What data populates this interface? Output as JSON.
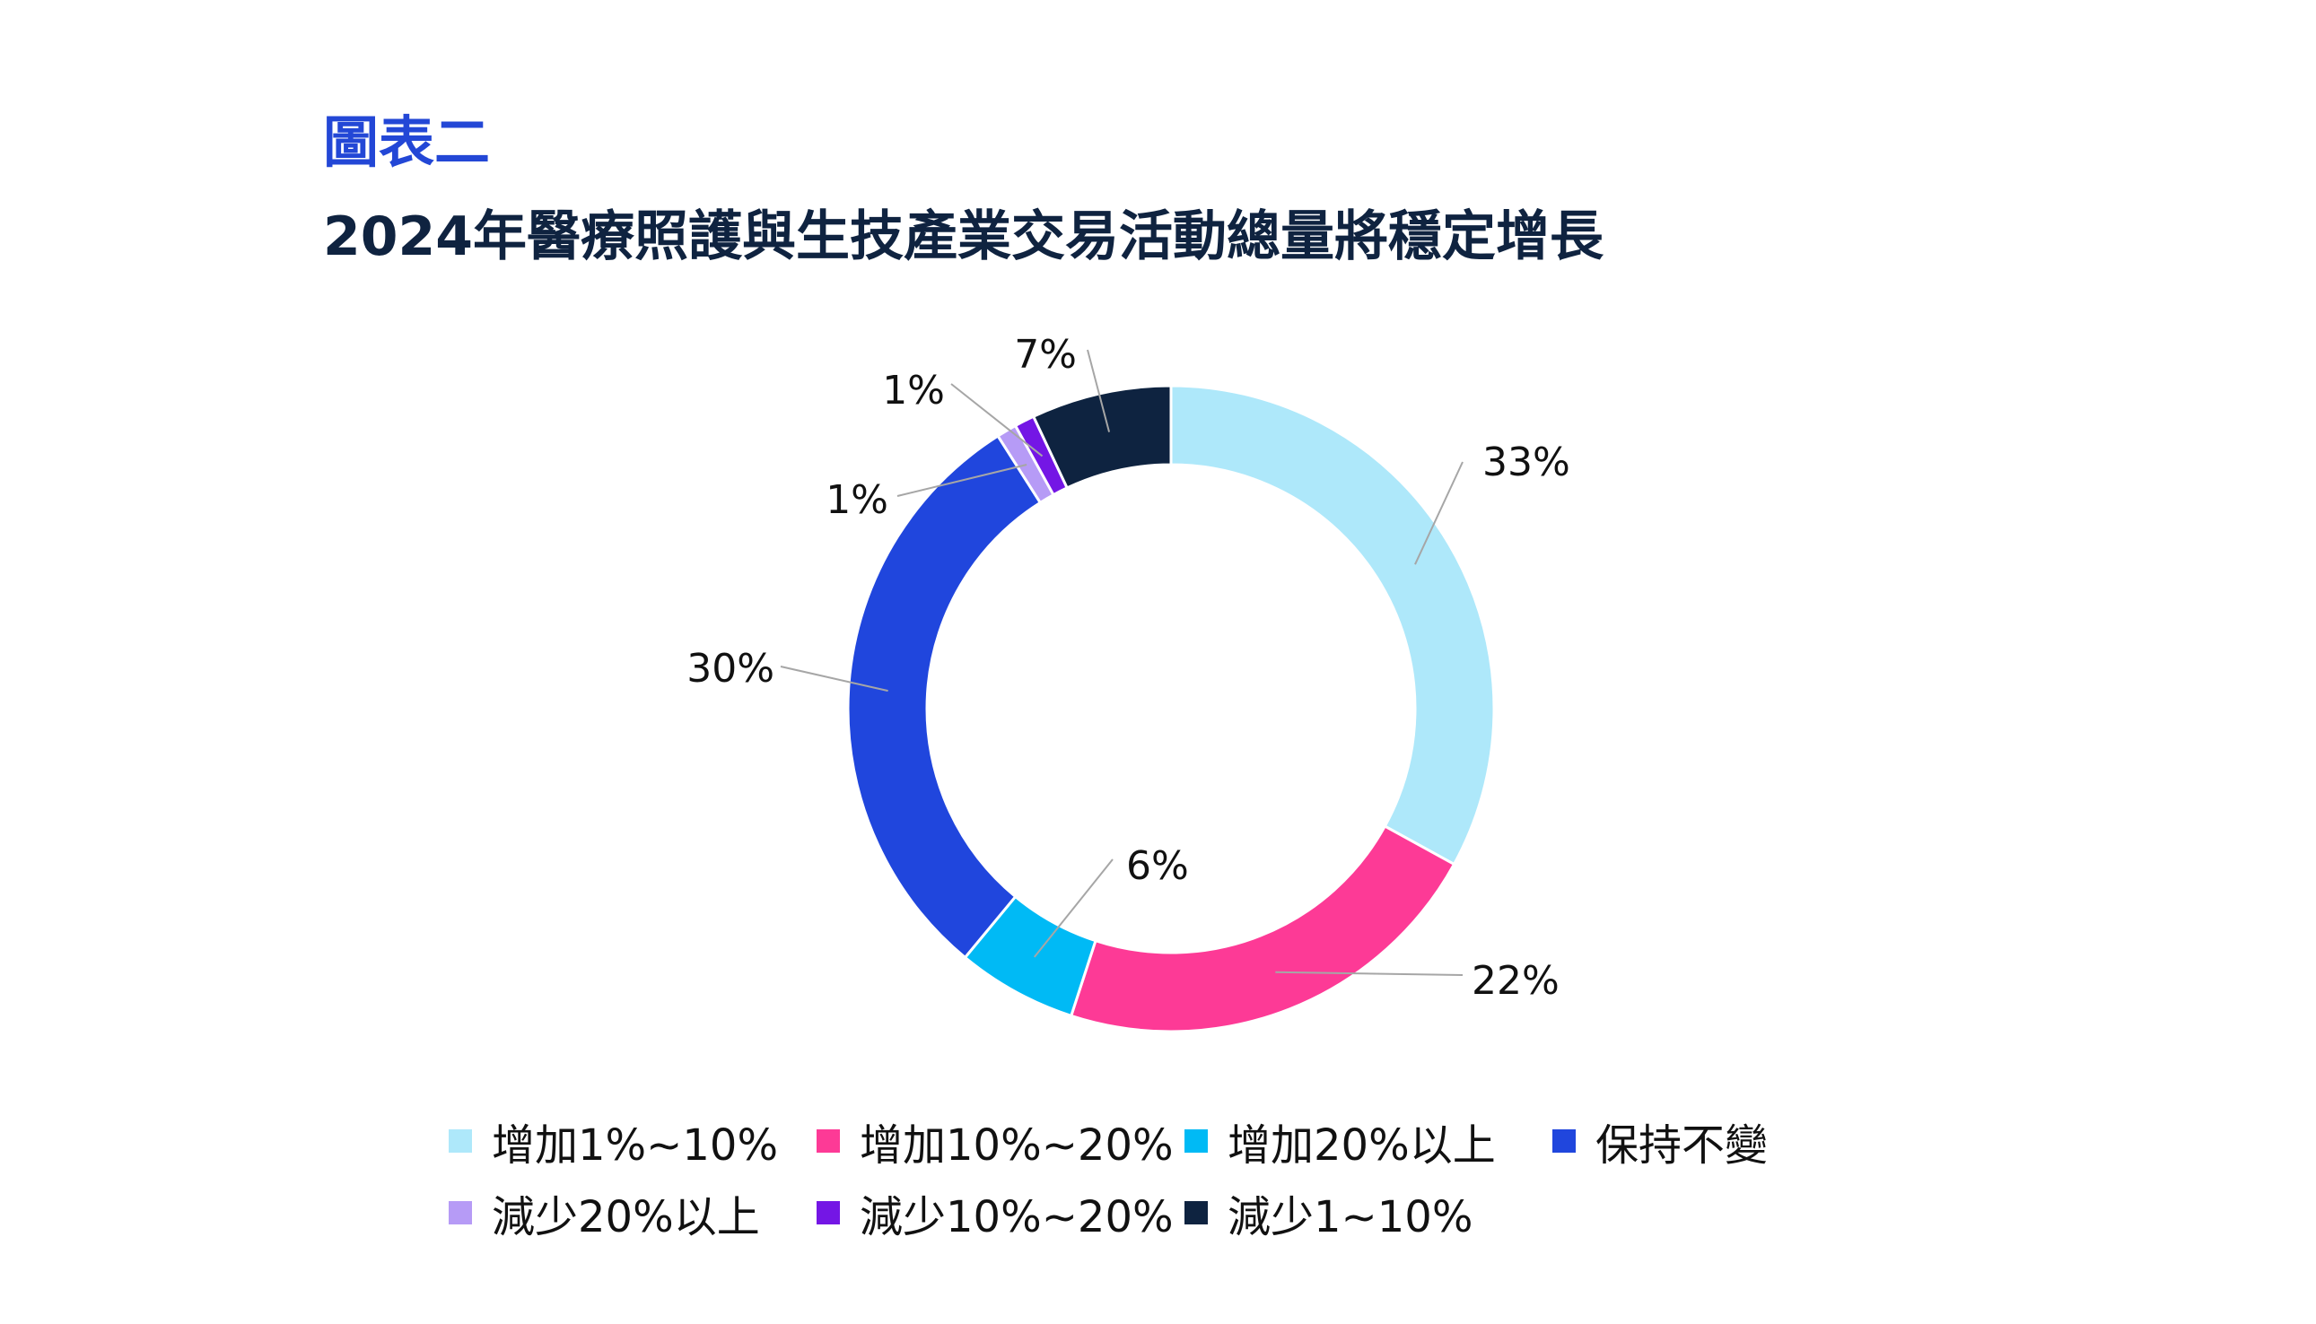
{
  "header": {
    "figure_label": "圖表二",
    "title": "2024年醫療照護與生技產業交易活動總量將穩定增長"
  },
  "chart_data": {
    "type": "pie",
    "donut": true,
    "legend_position": "bottom",
    "start_angle_deg": 0,
    "direction": "clockwise",
    "slices": [
      {
        "label": "增加1%~10%",
        "value": 33,
        "display": "33%",
        "color": "#AEE8FA"
      },
      {
        "label": "增加10%~20%",
        "value": 22,
        "display": "22%",
        "color": "#FD3A96"
      },
      {
        "label": "增加20%以上",
        "value": 6,
        "display": "6%",
        "color": "#00BAF5"
      },
      {
        "label": "保持不變",
        "value": 30,
        "display": "30%",
        "color": "#2046DD"
      },
      {
        "label": "減少20%以上",
        "value": 1,
        "display": "1%",
        "color": "#B69BF6"
      },
      {
        "label": "減少10%~20%",
        "value": 1,
        "display": "1%",
        "color": "#7416E5"
      },
      {
        "label": "減少1~10%",
        "value": 7,
        "display": "7%",
        "color": "#0E2340"
      }
    ]
  }
}
